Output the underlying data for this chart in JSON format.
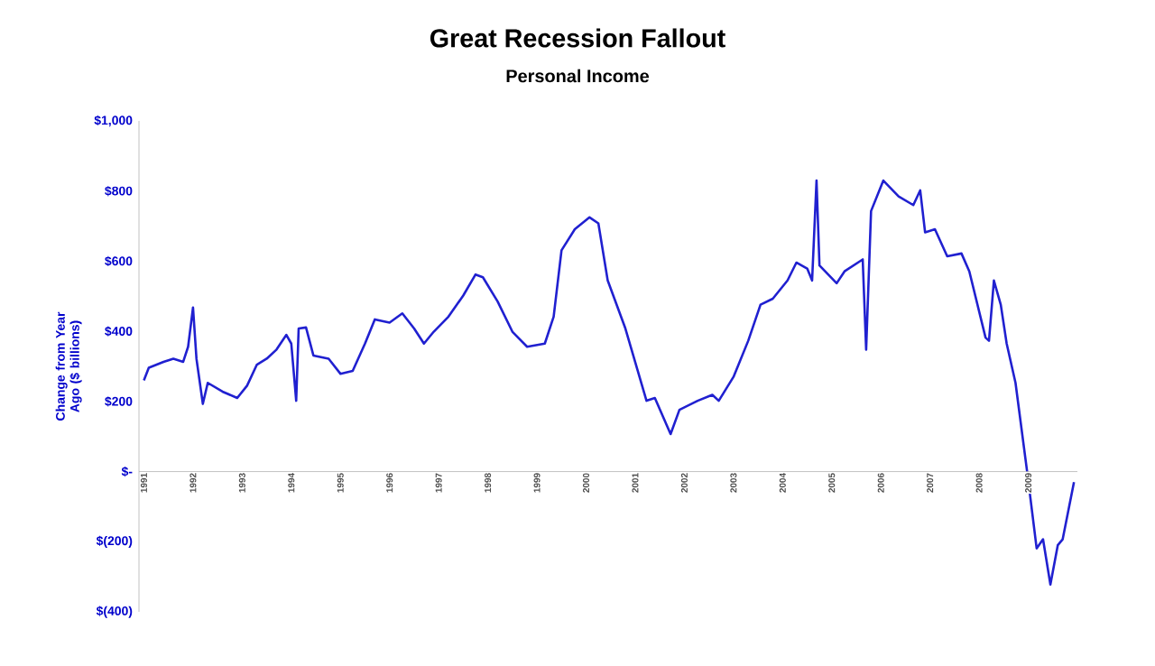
{
  "chart_data": {
    "type": "line",
    "title": "Great Recession Fallout",
    "subtitle": "Personal Income",
    "ylabel": "Change from Year Ago ($ billions)",
    "x": [
      1991.0,
      1991.1,
      1991.4,
      1991.6,
      1991.8,
      1991.9,
      1992.0,
      1992.07,
      1992.2,
      1992.3,
      1992.6,
      1992.9,
      1993.1,
      1993.3,
      1993.5,
      1993.7,
      1993.9,
      1994.0,
      1994.1,
      1994.15,
      1994.3,
      1994.45,
      1994.76,
      1995.0,
      1995.25,
      1995.5,
      1995.7,
      1996.0,
      1996.26,
      1996.5,
      1996.7,
      1996.9,
      1997.2,
      1997.5,
      1997.75,
      1997.9,
      1998.2,
      1998.5,
      1998.8,
      1999.16,
      1999.34,
      1999.5,
      1999.77,
      2000.07,
      2000.25,
      2000.44,
      2000.8,
      2001.23,
      2001.4,
      2001.72,
      2001.9,
      2002.27,
      2002.57,
      2002.7,
      2003.0,
      2003.3,
      2003.55,
      2003.8,
      2004.1,
      2004.28,
      2004.5,
      2004.6,
      2004.69,
      2004.75,
      2005.1,
      2005.26,
      2005.63,
      2005.7,
      2005.8,
      2006.05,
      2006.36,
      2006.66,
      2006.8,
      2006.9,
      2007.1,
      2007.35,
      2007.64,
      2007.8,
      2008.13,
      2008.2,
      2008.3,
      2008.44,
      2008.56,
      2008.74,
      2008.98,
      2009.17,
      2009.3,
      2009.45,
      2009.6,
      2009.7,
      2009.93
    ],
    "series": [
      {
        "color": "#2020d0",
        "values": [
          260,
          296,
          313,
          322,
          313,
          356,
          468,
          322,
          193,
          253,
          228,
          210,
          245,
          305,
          322,
          348,
          390,
          365,
          202,
          408,
          411,
          331,
          322,
          279,
          287,
          365,
          434,
          425,
          451,
          408,
          365,
          399,
          442,
          502,
          562,
          554,
          485,
          399,
          356,
          365,
          442,
          631,
          691,
          725,
          708,
          545,
          408,
          202,
          210,
          107,
          176,
          202,
          219,
          202,
          270,
          373,
          476,
          493,
          545,
          596,
          579,
          545,
          830,
          588,
          537,
          571,
          605,
          348,
          743,
          830,
          785,
          760,
          802,
          682,
          691,
          614,
          622,
          571,
          382,
          373,
          545,
          476,
          365,
          253,
          -4,
          -219,
          -193,
          -322,
          -210,
          -193,
          -30
        ]
      }
    ],
    "xlim": [
      1990.9,
      2010.0
    ],
    "xticks": [
      1991,
      1992,
      1993,
      1994,
      1995,
      1996,
      1997,
      1998,
      1999,
      2000,
      2001,
      2002,
      2003,
      2004,
      2005,
      2006,
      2007,
      2008,
      2009
    ],
    "ylim": [
      -400,
      1000
    ],
    "yticks": [
      {
        "value": 1000,
        "label": "$1,000"
      },
      {
        "value": 800,
        "label": "$800"
      },
      {
        "value": 600,
        "label": "$600"
      },
      {
        "value": 400,
        "label": "$400"
      },
      {
        "value": 200,
        "label": "$200"
      },
      {
        "value": 0,
        "label": "$-"
      },
      {
        "value": -200,
        "label": "$(200)"
      },
      {
        "value": -400,
        "label": "$(400)"
      }
    ],
    "grid": false,
    "marker": "none",
    "line_style": "solid"
  }
}
